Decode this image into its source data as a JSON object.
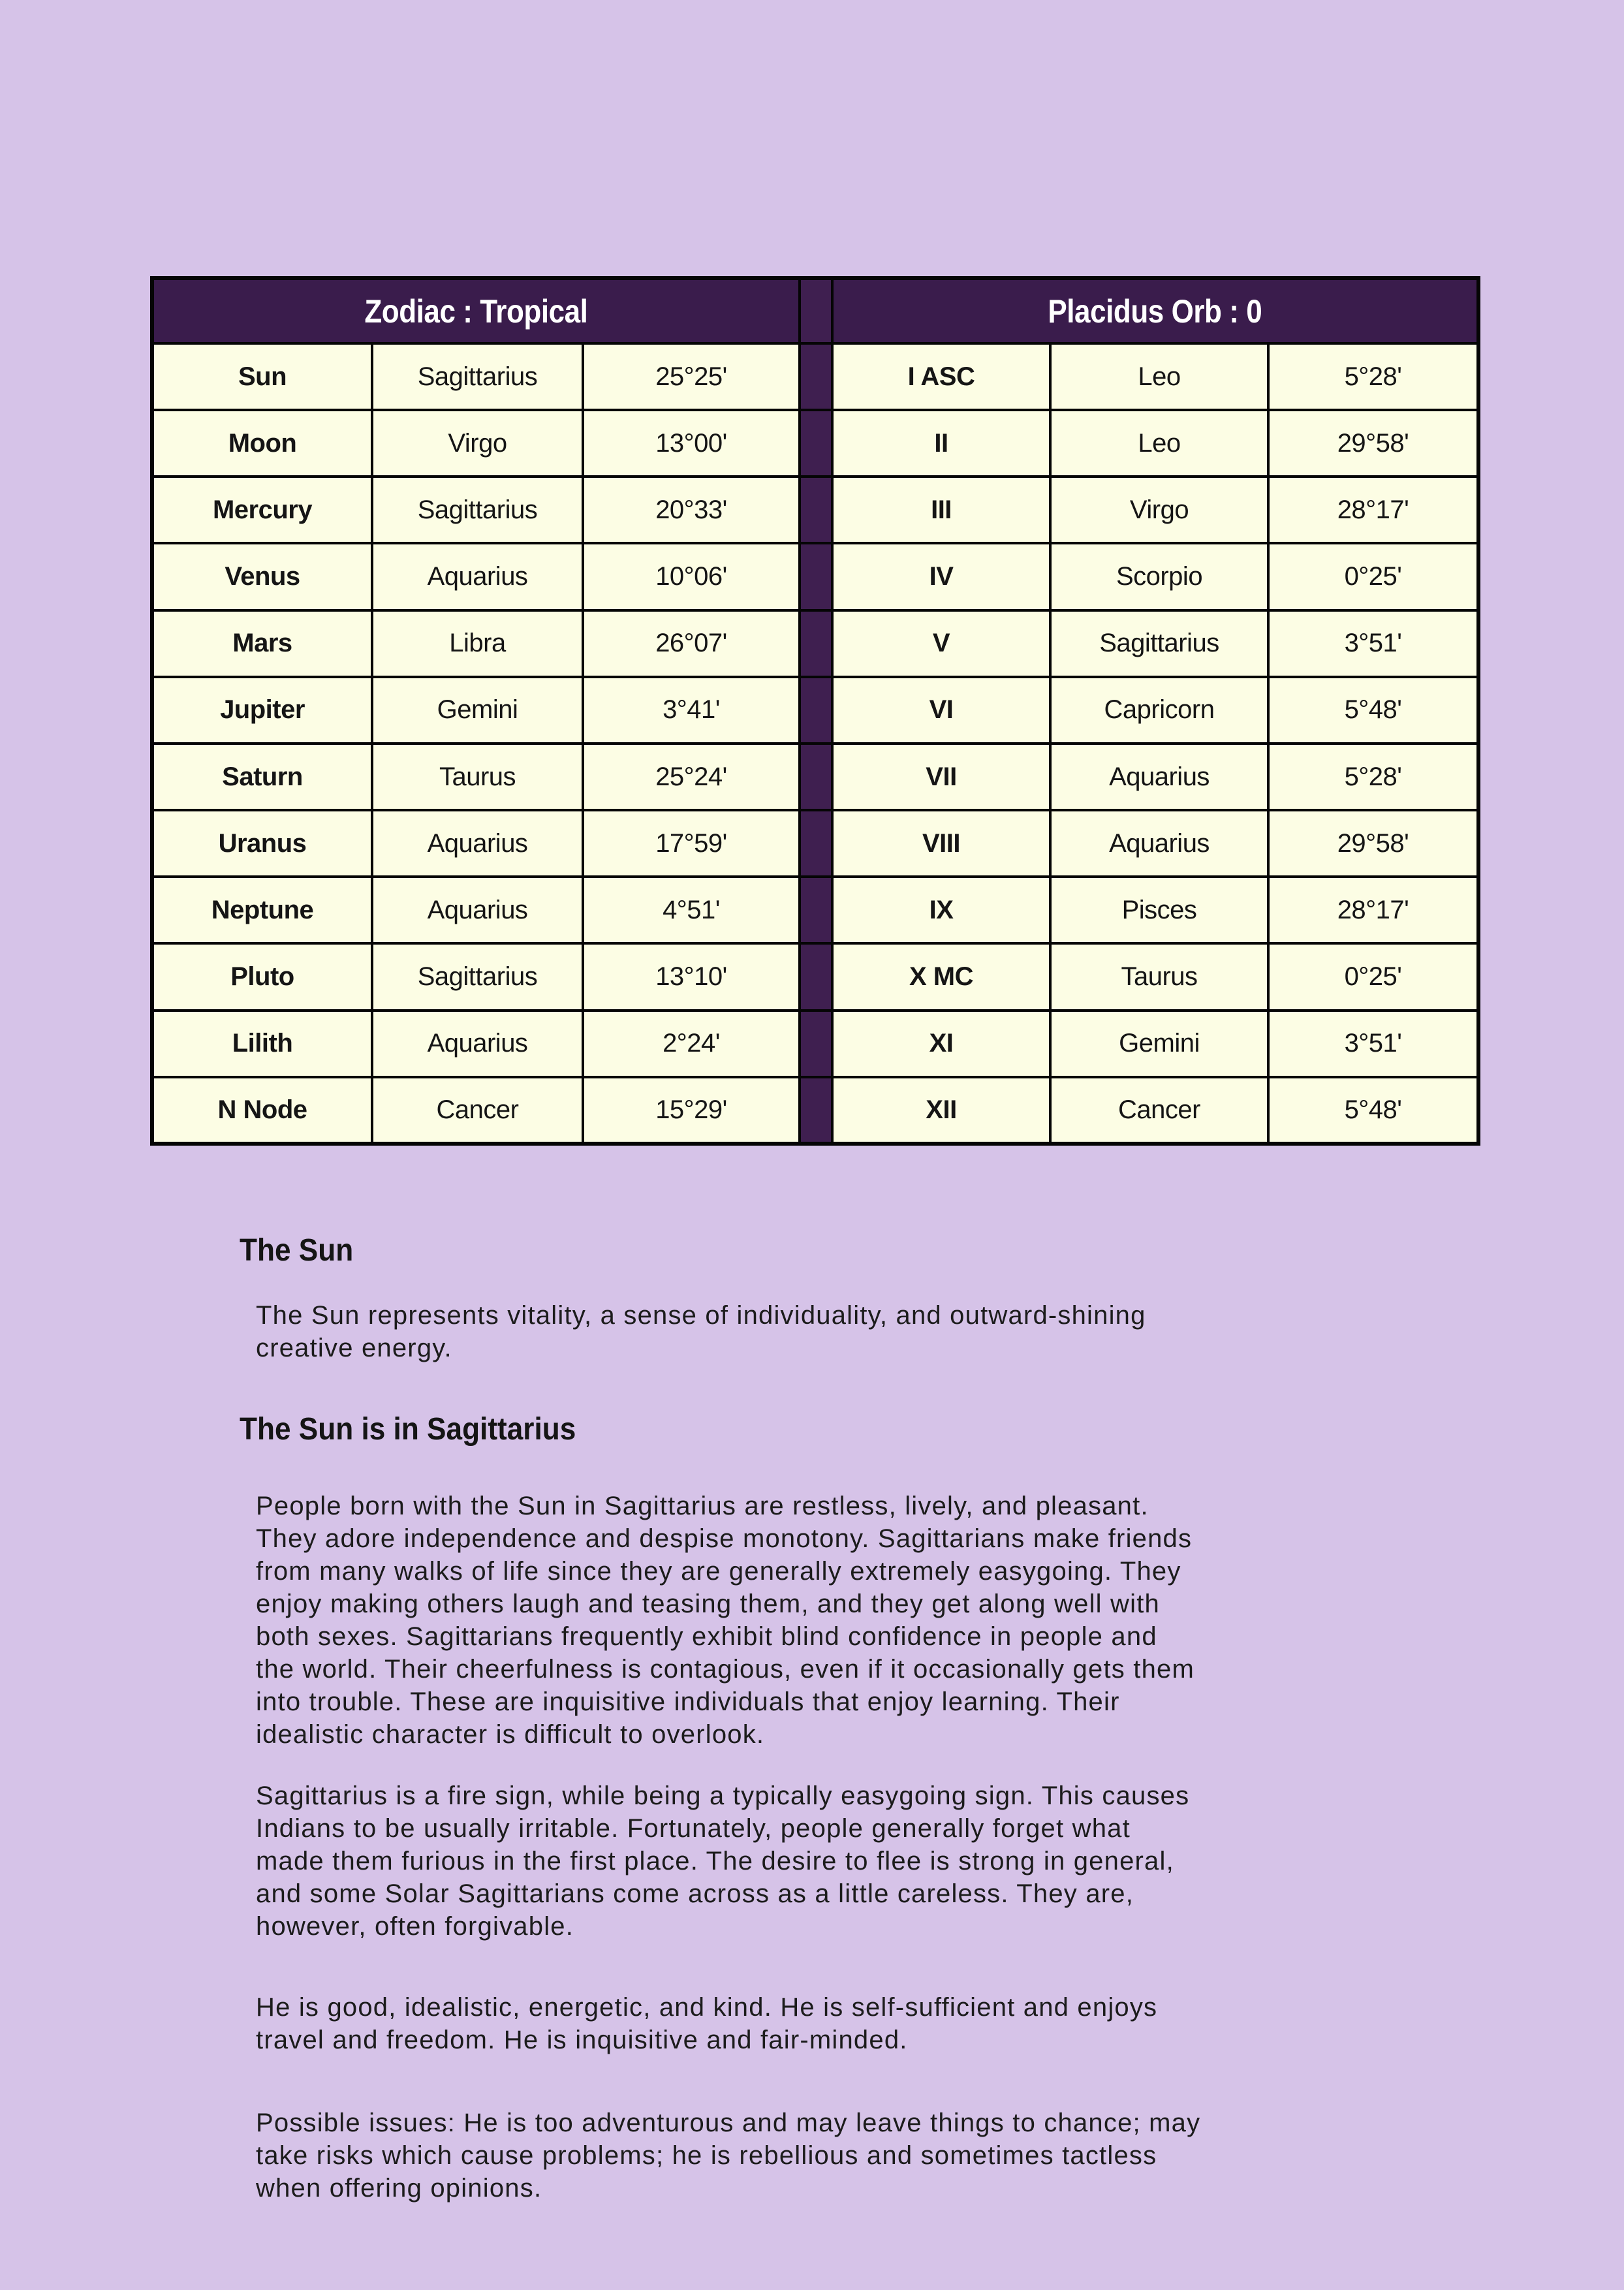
{
  "colors": {
    "page_bg": "#d6c3e8",
    "header_bg": "#3a1c4c",
    "divider_bg": "#3f1f50",
    "cell_bg": "#fcfde4",
    "border": "#050505",
    "text": "#151515"
  },
  "tables": {
    "left": {
      "header": "Zodiac : Tropical",
      "rows": [
        {
          "name": "Sun",
          "sign": "Sagittarius",
          "degree": "25°25'"
        },
        {
          "name": "Moon",
          "sign": "Virgo",
          "degree": "13°00'"
        },
        {
          "name": "Mercury",
          "sign": "Sagittarius",
          "degree": "20°33'"
        },
        {
          "name": "Venus",
          "sign": "Aquarius",
          "degree": "10°06'"
        },
        {
          "name": "Mars",
          "sign": "Libra",
          "degree": "26°07'"
        },
        {
          "name": "Jupiter",
          "sign": "Gemini",
          "degree": "3°41'"
        },
        {
          "name": "Saturn",
          "sign": "Taurus",
          "degree": "25°24'"
        },
        {
          "name": "Uranus",
          "sign": "Aquarius",
          "degree": "17°59'"
        },
        {
          "name": "Neptune",
          "sign": "Aquarius",
          "degree": "4°51'"
        },
        {
          "name": "Pluto",
          "sign": "Sagittarius",
          "degree": "13°10'"
        },
        {
          "name": "Lilith",
          "sign": "Aquarius",
          "degree": "2°24'"
        },
        {
          "name": "N Node",
          "sign": "Cancer",
          "degree": "15°29'"
        }
      ]
    },
    "right": {
      "header": "Placidus Orb : 0",
      "rows": [
        {
          "name": "I ASC",
          "sign": "Leo",
          "degree": "5°28'"
        },
        {
          "name": "II",
          "sign": "Leo",
          "degree": "29°58'"
        },
        {
          "name": "III",
          "sign": "Virgo",
          "degree": "28°17'"
        },
        {
          "name": "IV",
          "sign": "Scorpio",
          "degree": "0°25'"
        },
        {
          "name": "V",
          "sign": "Sagittarius",
          "degree": "3°51'"
        },
        {
          "name": "VI",
          "sign": "Capricorn",
          "degree": "5°48'"
        },
        {
          "name": "VII",
          "sign": "Aquarius",
          "degree": "5°28'"
        },
        {
          "name": "VIII",
          "sign": "Aquarius",
          "degree": "29°58'"
        },
        {
          "name": "IX",
          "sign": "Pisces",
          "degree": "28°17'"
        },
        {
          "name": "X MC",
          "sign": "Taurus",
          "degree": "0°25'"
        },
        {
          "name": "XI",
          "sign": "Gemini",
          "degree": "3°51'"
        },
        {
          "name": "XII",
          "sign": "Cancer",
          "degree": "5°48'"
        }
      ]
    }
  },
  "sun_section": {
    "heading": "The Sun",
    "intro_lines": [
      "The Sun represents vitality, a sense of individuality, and outward-shining",
      "creative energy."
    ],
    "subheading": "The Sun is in Sagittarius",
    "paragraphs": {
      "traits": [
        "People born with the Sun in Sagittarius are restless, lively, and pleasant.",
        "They adore independence and despise monotony. Sagittarians make friends",
        "from many walks of life since they are generally extremely easygoing. They",
        "enjoy making others laugh and teasing them, and they get along well with",
        "both sexes. Sagittarians frequently exhibit blind confidence in people and",
        "the world. Their cheerfulness is contagious, even if it occasionally gets them",
        "into trouble. These are inquisitive individuals that enjoy learning. Their",
        "idealistic character is difficult to overlook."
      ],
      "fire": [
        "Sagittarius is a fire sign, while being a typically easygoing sign. This causes",
        "Indians to be usually irritable. Fortunately, people generally forget what",
        "made them furious in the first place. The desire to flee is strong in general,",
        "and some Solar Sagittarians come across as a little careless. They are,",
        "however, often forgivable."
      ],
      "good": [
        "He is good, idealistic, energetic, and kind. He is self-sufficient and enjoys",
        "travel and freedom. He is inquisitive and fair-minded."
      ],
      "issues": [
        "Possible issues: He is too adventurous and may leave things to chance; may",
        "take risks which cause problems; he is rebellious and sometimes tactless",
        "when offering opinions."
      ]
    }
  }
}
